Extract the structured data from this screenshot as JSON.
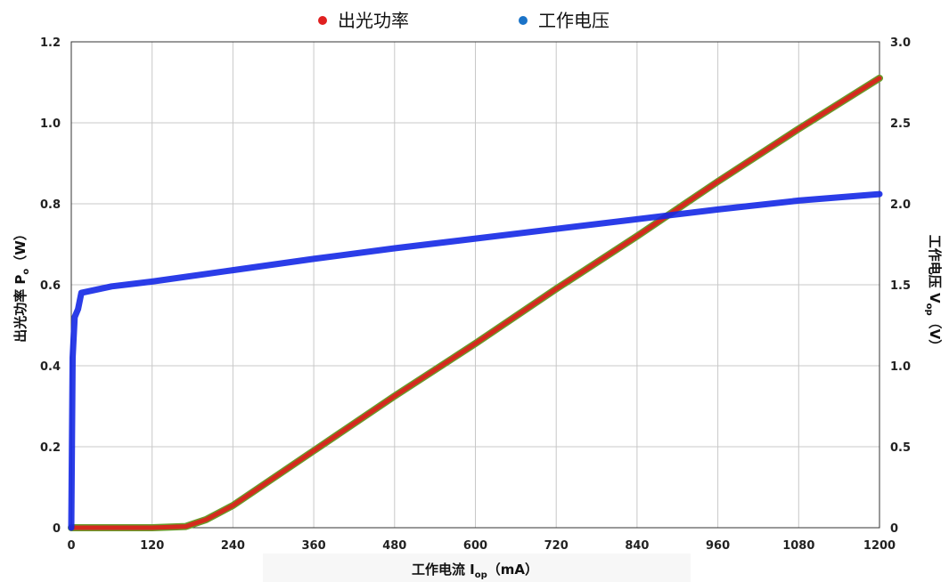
{
  "chart_data": {
    "type": "line",
    "grid": true,
    "legend_placement": "top-center",
    "x_axis": {
      "label_main": "工作电流 I",
      "label_sub": "op",
      "label_unit": "（mA）",
      "range": [
        0,
        1200
      ],
      "ticks": [
        0,
        120,
        240,
        360,
        480,
        600,
        720,
        840,
        960,
        1080,
        1200
      ]
    },
    "y_left": {
      "label_main": "出光功率 P",
      "label_sub": "o",
      "label_unit": "（W）",
      "range": [
        0,
        1.2
      ],
      "ticks": [
        0,
        0.2,
        0.4,
        0.6,
        0.8,
        1.0,
        1.2
      ],
      "tick_labels": [
        "0",
        "0.2",
        "0.4",
        "0.6",
        "0.8",
        "1.0",
        "1.2"
      ]
    },
    "y_right": {
      "label_main": "工作电压 V",
      "label_sub": "op",
      "label_unit": "（V）",
      "range": [
        0,
        3.0
      ],
      "ticks": [
        0,
        0.5,
        1.0,
        1.5,
        2.0,
        2.5,
        3.0
      ],
      "tick_labels": [
        "0",
        "0.5",
        "1.0",
        "1.5",
        "2.0",
        "2.5",
        "3.0"
      ]
    },
    "series": [
      {
        "name": "出光功率",
        "axis": "left",
        "color": "#d42a1e",
        "x": [
          0,
          60,
          120,
          170,
          200,
          240,
          360,
          480,
          600,
          720,
          840,
          960,
          1080,
          1200
        ],
        "y": [
          0,
          0,
          0,
          0.003,
          0.02,
          0.055,
          0.19,
          0.325,
          0.455,
          0.59,
          0.72,
          0.855,
          0.985,
          1.11
        ]
      },
      {
        "name": "工作电压",
        "axis": "right",
        "color": "#1428e6",
        "x": [
          0,
          2,
          5,
          10,
          15,
          60,
          120,
          240,
          360,
          480,
          600,
          720,
          840,
          960,
          1080,
          1200
        ],
        "y": [
          0,
          1.05,
          1.3,
          1.35,
          1.45,
          1.49,
          1.52,
          1.59,
          1.66,
          1.725,
          1.785,
          1.845,
          1.905,
          1.965,
          2.02,
          2.06
        ]
      }
    ],
    "legend": [
      {
        "label": "出光功率",
        "color": "#e02020"
      },
      {
        "label": "工作电压",
        "color": "#1a73c8"
      }
    ]
  }
}
